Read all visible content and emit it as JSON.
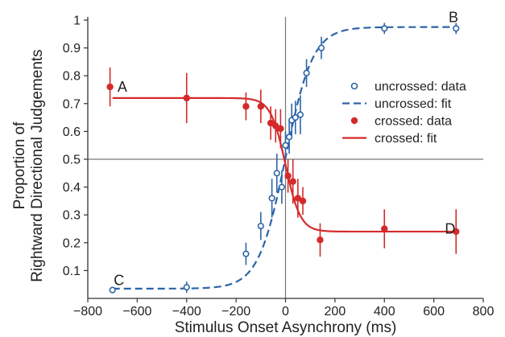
{
  "chart_data": {
    "type": "scatter",
    "title": "",
    "xlabel": "Stimulus Onset Asynchrony (ms)",
    "ylabel_lines": [
      "Proportion of",
      "Rightward Directional Judgements"
    ],
    "xlim": [
      -800,
      800
    ],
    "ylim": [
      0,
      1
    ],
    "xticks": [
      -800,
      -600,
      -400,
      -200,
      0,
      200,
      400,
      600,
      800
    ],
    "yticks": [
      0.1,
      0.2,
      0.3,
      0.4,
      0.5,
      0.6,
      0.7,
      0.8,
      0.9,
      1
    ],
    "grid": false,
    "reference_lines": {
      "x": 0,
      "y": 0.5
    },
    "legend_position": "right",
    "colors": {
      "uncrossed": "#2c64a8",
      "crossed": "#d42a2a",
      "axis": "#333333",
      "reference": "#777777"
    },
    "series": [
      {
        "name": "uncrossed: data",
        "kind": "points",
        "marker": "open-circle",
        "color": "#2c64a8",
        "x": [
          -700,
          -400,
          -160,
          -100,
          -55,
          -35,
          -15,
          0,
          15,
          25,
          40,
          60,
          85,
          145,
          400,
          690
        ],
        "y": [
          0.03,
          0.04,
          0.16,
          0.26,
          0.36,
          0.45,
          0.4,
          0.55,
          0.58,
          0.64,
          0.65,
          0.66,
          0.81,
          0.9,
          0.97,
          0.97
        ],
        "err": [
          0.01,
          0.02,
          0.04,
          0.05,
          0.07,
          0.07,
          0.06,
          0.05,
          0.06,
          0.06,
          0.06,
          0.07,
          0.05,
          0.04,
          0.02,
          0.02
        ]
      },
      {
        "name": "uncrossed: fit",
        "kind": "curve",
        "style": "dashed",
        "color": "#2c64a8",
        "model": {
          "lower": 0.035,
          "upper": 0.975,
          "center": 0,
          "slope": 55
        }
      },
      {
        "name": "crossed: data",
        "kind": "points",
        "marker": "filled-circle",
        "color": "#d42a2a",
        "x": [
          -710,
          -400,
          -160,
          -100,
          -60,
          -40,
          -20,
          10,
          30,
          50,
          70,
          140,
          400,
          690
        ],
        "y": [
          0.76,
          0.72,
          0.69,
          0.69,
          0.63,
          0.62,
          0.61,
          0.44,
          0.42,
          0.36,
          0.35,
          0.21,
          0.25,
          0.24
        ],
        "err": [
          0.07,
          0.09,
          0.05,
          0.06,
          0.06,
          0.06,
          0.07,
          0.06,
          0.08,
          0.07,
          0.05,
          0.06,
          0.07,
          0.08
        ]
      },
      {
        "name": "crossed: fit",
        "kind": "curve",
        "style": "solid",
        "color": "#d42a2a",
        "model": {
          "lower": 0.24,
          "upper": 0.72,
          "center": 0,
          "slope": -30
        }
      }
    ],
    "annotations": [
      {
        "text": "A",
        "x": -680,
        "y": 0.76
      },
      {
        "text": "B",
        "x": 660,
        "y": 1.01
      },
      {
        "text": "C",
        "x": -695,
        "y": 0.065
      },
      {
        "text": "D",
        "x": 645,
        "y": 0.25
      }
    ]
  }
}
